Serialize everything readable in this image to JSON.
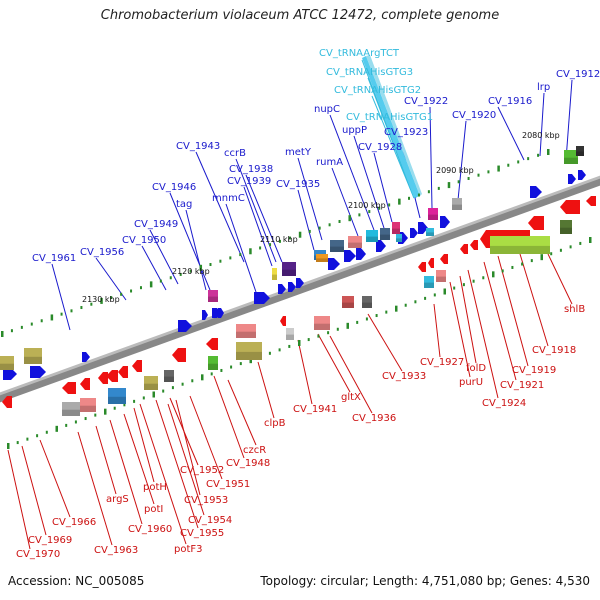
{
  "header": {
    "title": "Chromobacterium violaceum ATCC 12472, complete genome"
  },
  "footer": {
    "accession": "Accession: NC_005085",
    "summary": "Topology: circular; Length: 4,751,080 bp; Genes: 4,530"
  },
  "colors": {
    "top_strand_label": "#1a1acc",
    "bottom_strand_label": "#cc1111",
    "trna_label": "#33bbdd",
    "backbone": "#888888"
  },
  "ticks": [
    "2080 kbp",
    "2090 kbp",
    "2100 kbp",
    "2110 kbp",
    "2120 kbp",
    "2130 kbp"
  ],
  "top_labels": [
    "CV_tRNAArgTCT",
    "CV_tRNAHisGTG3",
    "CV_tRNAHisGTG2",
    "CV_tRNAHisGTG1",
    "CV_1912",
    "lrp",
    "CV_1916",
    "CV_1920",
    "CV_1922",
    "CV_1923",
    "nupC",
    "uppP",
    "CV_1928",
    "rumA",
    "metY",
    "CV_1935",
    "ccrB",
    "CV_1938",
    "CV_1939",
    "mnmC",
    "CV_1943",
    "CV_1946",
    "tag",
    "CV_1949",
    "CV_1950",
    "CV_1956",
    "CV_1961"
  ],
  "bottom_labels": [
    "shlB",
    "CV_1918",
    "CV_1919",
    "CV_1921",
    "CV_1924",
    "purU",
    "folD",
    "CV_1927",
    "CV_1933",
    "CV_1936",
    "gltX",
    "CV_1941",
    "clpB",
    "czcR",
    "CV_1948",
    "CV_1951",
    "CV_1952",
    "CV_1953",
    "CV_1954",
    "CV_1955",
    "potF3",
    "potH",
    "potI",
    "CV_1960",
    "argS",
    "CV_1963",
    "CV_1966",
    "CV_1969",
    "CV_1970"
  ]
}
